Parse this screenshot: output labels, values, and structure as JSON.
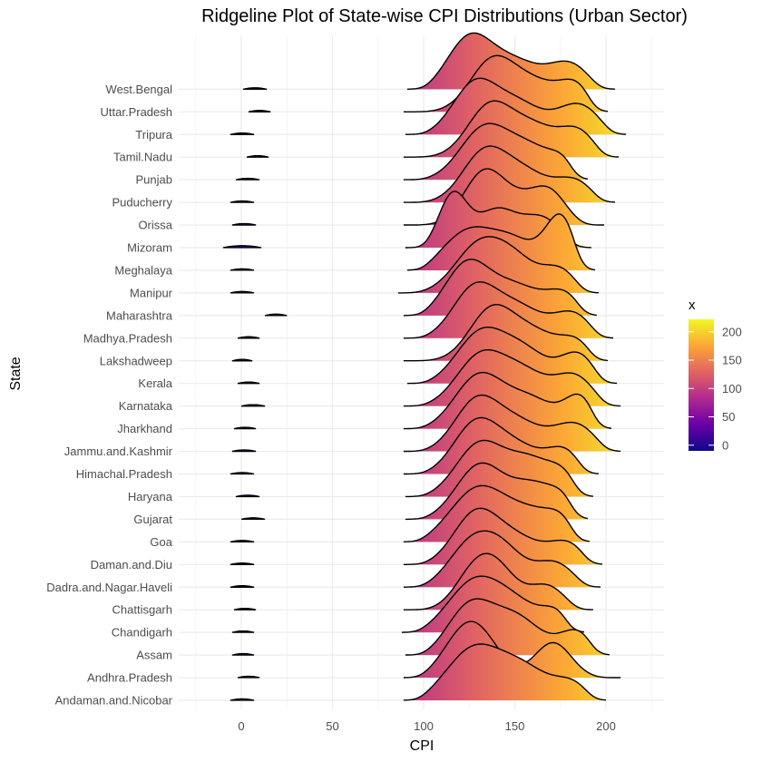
{
  "chart_data": {
    "type": "ridgeline",
    "title": "Ridgeline Plot of State-wise CPI Distributions (Urban Sector)",
    "xlabel": "CPI",
    "ylabel": "State",
    "xlim": [
      -25,
      230
    ],
    "x_ticks": [
      0,
      50,
      100,
      150,
      200
    ],
    "grid": true,
    "color_scale": {
      "name": "plasma",
      "title": "x",
      "range": [
        -10,
        222
      ],
      "ticks": [
        0,
        50,
        100,
        150,
        200
      ],
      "colors": [
        "#0d0887",
        "#6a00a8",
        "#b12a90",
        "#e16462",
        "#fca636",
        "#f0f921"
      ]
    },
    "series": [
      {
        "state": "Andaman.and.Nicobar",
        "low": [
          -6,
          7
        ],
        "main": [
          89,
          200
        ],
        "peaks": [
          [
            128,
            1.0,
            15
          ],
          [
            155,
            0.55,
            13
          ],
          [
            182,
            0.35,
            11
          ]
        ]
      },
      {
        "state": "Andhra.Pradesh",
        "low": [
          -2,
          10
        ],
        "main": [
          89,
          208
        ],
        "peaks": [
          [
            126,
            1.0,
            13
          ],
          [
            171,
            0.62,
            10
          ]
        ]
      },
      {
        "state": "Assam",
        "low": [
          -5,
          7
        ],
        "main": [
          90,
          202
        ],
        "peaks": [
          [
            125,
            0.85,
            12
          ],
          [
            150,
            0.7,
            14
          ],
          [
            185,
            0.45,
            10
          ]
        ]
      },
      {
        "state": "Chandigarh",
        "low": [
          -5,
          7
        ],
        "main": [
          88,
          188
        ],
        "peaks": [
          [
            127,
            0.95,
            14
          ],
          [
            150,
            0.55,
            14
          ],
          [
            175,
            0.4,
            9
          ]
        ]
      },
      {
        "state": "Chattisgarh",
        "low": [
          -4,
          8
        ],
        "main": [
          89,
          193
        ],
        "peaks": [
          [
            138,
            1.0,
            12
          ],
          [
            125,
            0.4,
            10
          ],
          [
            168,
            0.5,
            10
          ]
        ]
      },
      {
        "state": "Dadra.and.Nagar.Haveli",
        "low": [
          -6,
          7
        ],
        "main": [
          89,
          197
        ],
        "peaks": [
          [
            125,
            0.8,
            12
          ],
          [
            143,
            0.75,
            12
          ],
          [
            172,
            0.5,
            11
          ]
        ]
      },
      {
        "state": "Daman.and.Diu",
        "low": [
          -6,
          7
        ],
        "main": [
          89,
          198
        ],
        "peaks": [
          [
            128,
            1.0,
            12
          ],
          [
            150,
            0.55,
            14
          ],
          [
            180,
            0.45,
            11
          ]
        ]
      },
      {
        "state": "Goa",
        "low": [
          -6,
          7
        ],
        "main": [
          89,
          191
        ],
        "peaks": [
          [
            130,
            0.9,
            15
          ],
          [
            160,
            0.45,
            14
          ],
          [
            178,
            0.3,
            9
          ]
        ]
      },
      {
        "state": "Gujarat",
        "low": [
          0,
          13
        ],
        "main": [
          90,
          190
        ],
        "peaks": [
          [
            131,
            1.0,
            13
          ],
          [
            160,
            0.6,
            12
          ],
          [
            180,
            0.4,
            9
          ]
        ]
      },
      {
        "state": "Haryana",
        "low": [
          -3,
          10
        ],
        "main": [
          90,
          193
        ],
        "peaks": [
          [
            131,
            1.0,
            13
          ],
          [
            158,
            0.65,
            12
          ],
          [
            178,
            0.4,
            9
          ]
        ]
      },
      {
        "state": "Himachal.Pradesh",
        "low": [
          -6,
          7
        ],
        "main": [
          89,
          196
        ],
        "peaks": [
          [
            128,
            1.0,
            12
          ],
          [
            150,
            0.6,
            14
          ],
          [
            178,
            0.5,
            10
          ]
        ]
      },
      {
        "state": "Jammu.and.Kashmir",
        "low": [
          -5,
          8
        ],
        "main": [
          89,
          208
        ],
        "peaks": [
          [
            129,
            1.0,
            12
          ],
          [
            152,
            0.55,
            13
          ],
          [
            183,
            0.55,
            12
          ]
        ]
      },
      {
        "state": "Jharkhand",
        "low": [
          -4,
          8
        ],
        "main": [
          89,
          203
        ],
        "peaks": [
          [
            130,
            0.95,
            13
          ],
          [
            158,
            0.55,
            14
          ],
          [
            187,
            0.6,
            9
          ]
        ]
      },
      {
        "state": "Karnataka",
        "low": [
          0,
          13
        ],
        "main": [
          89,
          208
        ],
        "peaks": [
          [
            131,
            1.0,
            13
          ],
          [
            155,
            0.65,
            13
          ],
          [
            183,
            0.6,
            11
          ]
        ]
      },
      {
        "state": "Kerala",
        "low": [
          -2,
          10
        ],
        "main": [
          91,
          206
        ],
        "peaks": [
          [
            131,
            1.0,
            13
          ],
          [
            155,
            0.65,
            13
          ],
          [
            185,
            0.6,
            10
          ]
        ]
      },
      {
        "state": "Lakshadweep",
        "low": [
          -5,
          6
        ],
        "main": [
          89,
          201
        ],
        "peaks": [
          [
            137,
            1.0,
            12
          ],
          [
            160,
            0.55,
            13
          ],
          [
            185,
            0.4,
            10
          ]
        ]
      },
      {
        "state": "Madhya.Pradesh",
        "low": [
          -2,
          10
        ],
        "main": [
          89,
          204
        ],
        "peaks": [
          [
            128,
            1.0,
            12
          ],
          [
            152,
            0.6,
            13
          ],
          [
            182,
            0.5,
            11
          ]
        ]
      },
      {
        "state": "Maharashtra",
        "low": [
          13,
          25
        ],
        "main": [
          89,
          195
        ],
        "peaks": [
          [
            124,
            1.0,
            12
          ],
          [
            150,
            0.55,
            13
          ],
          [
            178,
            0.45,
            11
          ]
        ]
      },
      {
        "state": "Manipur",
        "low": [
          -6,
          7
        ],
        "main": [
          86,
          196
        ],
        "peaks": [
          [
            130,
            1.0,
            13
          ],
          [
            150,
            0.65,
            12
          ],
          [
            175,
            0.5,
            10
          ]
        ]
      },
      {
        "state": "Meghalaya",
        "low": [
          -6,
          7
        ],
        "main": [
          91,
          194
        ],
        "peaks": [
          [
            125,
            0.6,
            14
          ],
          [
            150,
            0.4,
            12
          ],
          [
            176,
            0.85,
            9
          ]
        ]
      },
      {
        "state": "Mizoram",
        "low": [
          -10,
          11
        ],
        "main": [
          90,
          192
        ],
        "peaks": [
          [
            116,
            1.0,
            8
          ],
          [
            140,
            0.7,
            11
          ],
          [
            165,
            0.55,
            11
          ]
        ]
      },
      {
        "state": "Orissa",
        "low": [
          -5,
          8
        ],
        "main": [
          89,
          199
        ],
        "peaks": [
          [
            133,
            1.0,
            11
          ],
          [
            155,
            0.45,
            12
          ],
          [
            170,
            0.5,
            9
          ]
        ]
      },
      {
        "state": "Puducherry",
        "low": [
          -6,
          7
        ],
        "main": [
          89,
          205
        ],
        "peaks": [
          [
            133,
            1.0,
            12
          ],
          [
            155,
            0.6,
            13
          ],
          [
            183,
            0.45,
            11
          ]
        ]
      },
      {
        "state": "Punjab",
        "low": [
          -3,
          10
        ],
        "main": [
          89,
          190
        ],
        "peaks": [
          [
            133,
            1.0,
            13
          ],
          [
            158,
            0.6,
            13
          ],
          [
            180,
            0.4,
            9
          ]
        ]
      },
      {
        "state": "Tamil.Nadu",
        "low": [
          3,
          15
        ],
        "main": [
          89,
          207
        ],
        "peaks": [
          [
            136,
            1.0,
            12
          ],
          [
            160,
            0.6,
            13
          ],
          [
            185,
            0.5,
            10
          ]
        ]
      },
      {
        "state": "Tripura",
        "low": [
          -6,
          7
        ],
        "main": [
          90,
          211
        ],
        "peaks": [
          [
            128,
            1.0,
            12
          ],
          [
            152,
            0.6,
            13
          ],
          [
            185,
            0.6,
            12
          ]
        ]
      },
      {
        "state": "Uttar.Pradesh",
        "low": [
          4,
          16
        ],
        "main": [
          89,
          201
        ],
        "peaks": [
          [
            137,
            1.0,
            12
          ],
          [
            160,
            0.6,
            14
          ],
          [
            185,
            0.55,
            10
          ]
        ]
      },
      {
        "state": "West.Bengal",
        "low": [
          1,
          14
        ],
        "main": [
          91,
          205
        ],
        "peaks": [
          [
            125,
            1.0,
            12
          ],
          [
            150,
            0.55,
            14
          ],
          [
            180,
            0.5,
            11
          ]
        ]
      }
    ]
  }
}
